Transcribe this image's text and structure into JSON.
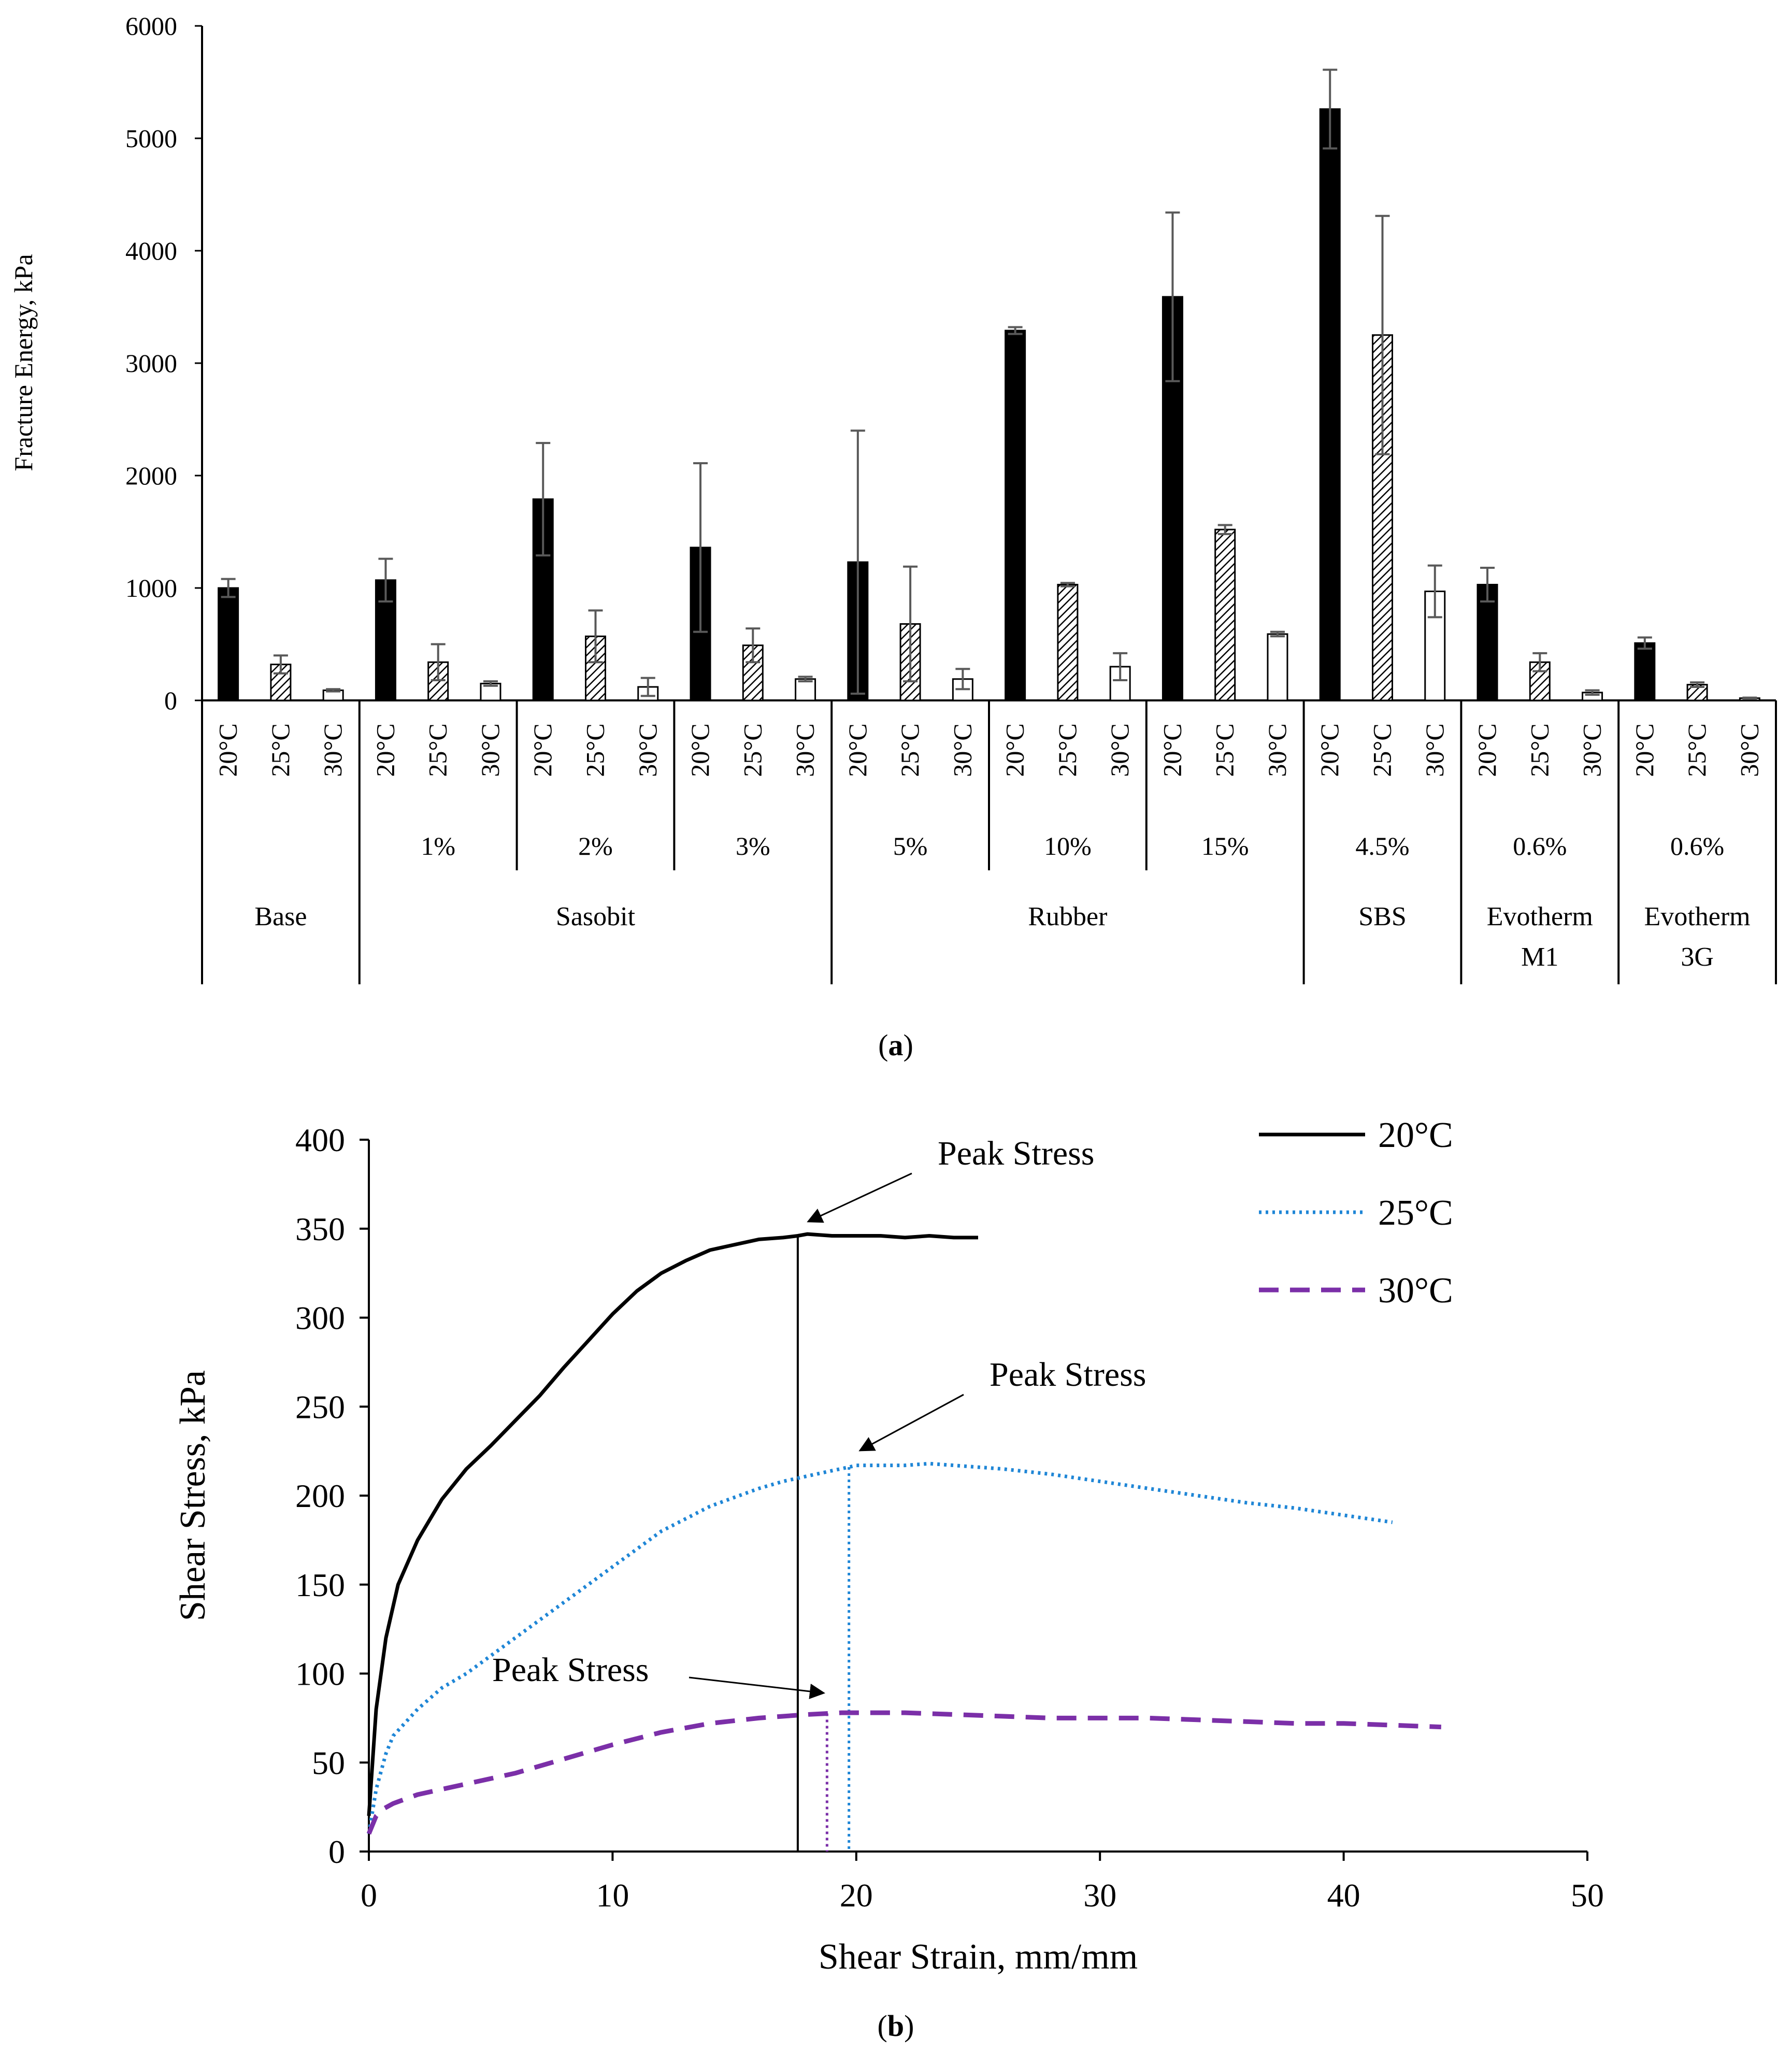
{
  "colors": {
    "axis": "#000000",
    "grid_line": "#000000",
    "error_bar": "#595959",
    "bar_20": "#000000",
    "bar_25_hatch": "#000000",
    "bar_30": "#ffffff",
    "line_20": "#000000",
    "line_25": "#1f86d6",
    "line_30": "#7b2fa8"
  },
  "chart_data": [
    {
      "type": "bar",
      "panel_label": "(a)",
      "panel_letter": "a",
      "ylabel": "Fracture Energy,  kPa",
      "ylim": [
        0,
        6000
      ],
      "yticks": [
        0,
        1000,
        2000,
        3000,
        4000,
        5000,
        6000
      ],
      "temperatures": [
        "20°C",
        "25°C",
        "30°C"
      ],
      "level_groups": [
        {
          "label": "",
          "values": [
            1000,
            320,
            90
          ],
          "errors": [
            80,
            80,
            10
          ]
        },
        {
          "label": "1%",
          "values": [
            1070,
            340,
            150
          ],
          "errors": [
            190,
            160,
            20
          ]
        },
        {
          "label": "2%",
          "values": [
            1790,
            570,
            120
          ],
          "errors": [
            500,
            230,
            80
          ]
        },
        {
          "label": "3%",
          "values": [
            1360,
            490,
            190
          ],
          "errors": [
            750,
            150,
            20
          ]
        },
        {
          "label": "5%",
          "values": [
            1230,
            680,
            190
          ],
          "errors": [
            1170,
            510,
            90
          ]
        },
        {
          "label": "10%",
          "values": [
            3290,
            1030,
            300
          ],
          "errors": [
            30,
            15,
            120
          ]
        },
        {
          "label": "15%",
          "values": [
            3590,
            1520,
            590
          ],
          "errors": [
            750,
            40,
            20
          ]
        },
        {
          "label": "4.5%",
          "values": [
            5260,
            3250,
            970
          ],
          "errors": [
            350,
            1060,
            230
          ]
        },
        {
          "label": "0.6%",
          "values": [
            1030,
            340,
            70
          ],
          "errors": [
            150,
            80,
            20
          ]
        },
        {
          "label": "0.6%",
          "values": [
            510,
            140,
            20
          ],
          "errors": [
            50,
            20,
            5
          ]
        }
      ],
      "modifier_groups": [
        {
          "label": "Base",
          "levels": 1
        },
        {
          "label": "Sasobit",
          "levels": 3
        },
        {
          "label": "Rubber",
          "levels": 3
        },
        {
          "label": "SBS",
          "levels": 1
        },
        {
          "label": "Evotherm\nM1",
          "levels": 1
        },
        {
          "label": "Evotherm\n3G",
          "levels": 1
        }
      ]
    },
    {
      "type": "line",
      "panel_label": "(b)",
      "panel_letter": "b",
      "xlabel": "Shear Strain, mm/mm",
      "ylabel": "Shear Stress, kPa",
      "xlim": [
        0,
        50
      ],
      "ylim": [
        0,
        400
      ],
      "xticks": [
        0,
        10,
        20,
        30,
        40,
        50
      ],
      "yticks": [
        0,
        50,
        100,
        150,
        200,
        250,
        300,
        350,
        400
      ],
      "series": [
        {
          "name": "20°C",
          "style": "solid",
          "x": [
            0,
            0.3,
            0.7,
            1.2,
            2,
            3,
            4,
            5,
            6,
            7,
            8,
            9,
            10,
            11,
            12,
            13,
            14,
            15,
            16,
            17,
            17.6,
            18,
            19,
            20,
            21,
            22,
            23,
            24,
            25
          ],
          "y": [
            20,
            80,
            120,
            150,
            175,
            198,
            215,
            228,
            242,
            256,
            272,
            287,
            302,
            315,
            325,
            332,
            338,
            341,
            344,
            345,
            346,
            347,
            346,
            346,
            346,
            345,
            346,
            345,
            345
          ],
          "peak_x": 17.6,
          "peak_label": "Peak Stress"
        },
        {
          "name": "25°C",
          "style": "dotted",
          "x": [
            0,
            0.3,
            0.7,
            1,
            2,
            3,
            4,
            5,
            6,
            7,
            8,
            9,
            10,
            11,
            12,
            13,
            14,
            15,
            16,
            17,
            18,
            19,
            19.7,
            20,
            21,
            22,
            23,
            24,
            26,
            28,
            30,
            32,
            34,
            36,
            38,
            40,
            42
          ],
          "y": [
            10,
            35,
            55,
            65,
            80,
            92,
            100,
            110,
            120,
            130,
            140,
            150,
            160,
            170,
            180,
            187,
            194,
            199,
            204,
            208,
            211,
            214,
            216,
            217,
            217,
            217,
            218,
            217,
            215,
            212,
            208,
            204,
            200,
            196,
            193,
            189,
            185
          ],
          "peak_x": 19.7,
          "peak_label": "Peak Stress"
        },
        {
          "name": "30°C",
          "style": "dashed",
          "x": [
            0,
            0.3,
            0.6,
            1,
            2,
            4,
            6,
            8,
            10,
            12,
            14,
            16,
            18,
            19.4,
            20,
            22,
            24,
            26,
            28,
            30,
            32,
            34,
            36,
            38,
            40,
            42,
            44
          ],
          "y": [
            10,
            20,
            24,
            27,
            32,
            38,
            44,
            52,
            60,
            67,
            72,
            75,
            77,
            78,
            78,
            78,
            77,
            76,
            75,
            75,
            75,
            74,
            73,
            72,
            72,
            71,
            70
          ],
          "peak_x": 18.8,
          "peak_label": "Peak Stress"
        }
      ]
    }
  ]
}
